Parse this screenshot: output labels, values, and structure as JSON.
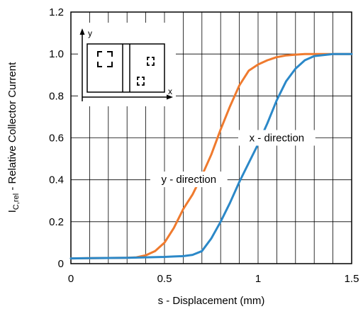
{
  "chart_data": {
    "type": "line",
    "xlabel": "s - Displacement (mm)",
    "ylabel_main": "I",
    "ylabel_sub": "C,rel",
    "ylabel_rest": " - Relative Collector Current",
    "xlim": [
      0,
      1.5
    ],
    "ylim": [
      0,
      1.2
    ],
    "xticks": [
      "0",
      "0.5",
      "1",
      "1.5"
    ],
    "yticks": [
      "0",
      "0.2",
      "0.4",
      "0.6",
      "0.8",
      "1.0",
      "1.2"
    ],
    "grid": true,
    "series": [
      {
        "name": "y - direction",
        "color": "#ef7a2e",
        "x": [
          0,
          0.1,
          0.2,
          0.3,
          0.35,
          0.4,
          0.45,
          0.5,
          0.55,
          0.6,
          0.65,
          0.7,
          0.75,
          0.8,
          0.85,
          0.9,
          0.95,
          1.0,
          1.05,
          1.1,
          1.15,
          1.2,
          1.25,
          1.3,
          1.4,
          1.5
        ],
        "y": [
          0.025,
          0.026,
          0.027,
          0.028,
          0.03,
          0.04,
          0.06,
          0.1,
          0.17,
          0.26,
          0.33,
          0.42,
          0.52,
          0.64,
          0.75,
          0.85,
          0.92,
          0.95,
          0.97,
          0.985,
          0.993,
          0.997,
          1.0,
          1.0,
          1.0,
          1.0
        ]
      },
      {
        "name": "x - direction",
        "color": "#2b88c8",
        "x": [
          0,
          0.1,
          0.2,
          0.3,
          0.4,
          0.5,
          0.55,
          0.6,
          0.65,
          0.7,
          0.75,
          0.8,
          0.85,
          0.9,
          0.95,
          1.0,
          1.05,
          1.1,
          1.15,
          1.2,
          1.25,
          1.3,
          1.4,
          1.5
        ],
        "y": [
          0.025,
          0.026,
          0.027,
          0.028,
          0.03,
          0.032,
          0.034,
          0.036,
          0.042,
          0.06,
          0.12,
          0.2,
          0.29,
          0.39,
          0.48,
          0.57,
          0.67,
          0.78,
          0.87,
          0.93,
          0.97,
          0.99,
          1.0,
          1.0
        ]
      }
    ],
    "annotations": [
      {
        "text": "y - direction",
        "at_x": 0.63,
        "at_y": 0.402
      },
      {
        "text": "x - direction",
        "at_x": 1.1,
        "at_y": 0.6
      }
    ],
    "inset": {
      "axis_x": "x",
      "axis_y": "y"
    }
  }
}
